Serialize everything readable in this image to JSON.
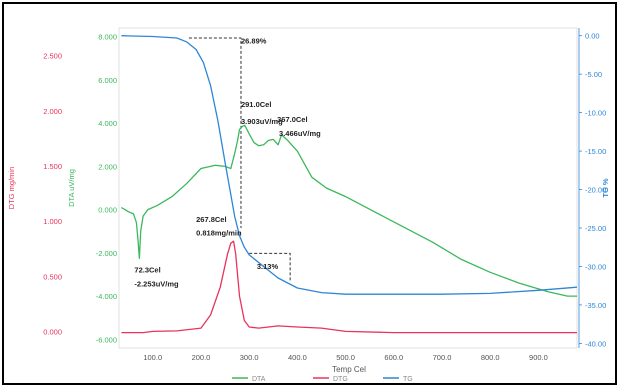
{
  "chart_data": {
    "type": "line",
    "xlabel": "Temp Cel",
    "x_ticks": [
      "100.0",
      "200.0",
      "300.0",
      "400.0",
      "500.0",
      "600.0",
      "700.0",
      "800.0",
      "900.0"
    ],
    "xlim": [
      30,
      980
    ],
    "axes": {
      "dtg": {
        "label": "DTG mg/min",
        "color": "#e8345a",
        "ticks": [
          "2.500",
          "2.000",
          "1.500",
          "1.000",
          "0.500",
          "0.000"
        ],
        "ylim": [
          -0.15,
          2.75
        ]
      },
      "dta": {
        "label": "DTA uV/mg",
        "color": "#3cb85c",
        "ticks": [
          "8.000",
          "6.000",
          "4.000",
          "2.000",
          "0.000",
          "-2.000",
          "-4.000",
          "-6.000"
        ],
        "ylim": [
          -6.4,
          8.4
        ]
      },
      "tg": {
        "label": "TG %",
        "color": "#2f86d6",
        "ticks": [
          "0.00",
          "-5.00",
          "-10.00",
          "-15.00",
          "-20.00",
          "-25.00",
          "-30.00",
          "-35.00",
          "-40.00"
        ],
        "ylim": [
          -40.6,
          1.0
        ]
      }
    },
    "series": [
      {
        "axis": "dta",
        "color": "#3cb85c",
        "x": [
          35,
          50,
          60,
          66,
          69,
          72.3,
          75,
          80,
          90,
          110,
          140,
          170,
          200,
          230,
          250,
          262,
          270,
          276,
          280,
          286,
          291,
          300,
          310,
          320,
          330,
          340,
          350,
          360,
          367,
          380,
          400,
          430,
          460,
          500,
          560,
          620,
          680,
          740,
          800,
          860,
          920,
          960,
          980
        ],
        "y": [
          0.1,
          -0.1,
          -0.2,
          -0.6,
          -1.3,
          -2.25,
          -1.0,
          -0.3,
          0.0,
          0.2,
          0.6,
          1.2,
          1.9,
          2.05,
          2.0,
          1.9,
          2.6,
          3.2,
          3.7,
          3.85,
          3.9,
          3.5,
          3.1,
          2.95,
          3.0,
          3.2,
          3.25,
          3.0,
          3.46,
          3.2,
          2.7,
          1.5,
          1.0,
          0.6,
          -0.1,
          -0.8,
          -1.5,
          -2.3,
          -2.9,
          -3.4,
          -3.8,
          -4.0,
          -4.0
        ]
      },
      {
        "axis": "dtg",
        "color": "#e8345a",
        "x": [
          35,
          80,
          100,
          150,
          200,
          220,
          240,
          255,
          262,
          267.8,
          272,
          280,
          290,
          300,
          320,
          360,
          400,
          450,
          500,
          600,
          700,
          800,
          900,
          980
        ],
        "y": [
          -0.01,
          -0.01,
          0.0,
          0.005,
          0.03,
          0.15,
          0.4,
          0.7,
          0.8,
          0.818,
          0.7,
          0.32,
          0.1,
          0.04,
          0.03,
          0.05,
          0.04,
          0.03,
          0.0,
          -0.01,
          -0.01,
          -0.01,
          -0.01,
          -0.01
        ]
      },
      {
        "axis": "tg",
        "color": "#2f86d6",
        "x": [
          35,
          100,
          150,
          170,
          190,
          205,
          220,
          235,
          250,
          260,
          270,
          280,
          290,
          300,
          330,
          360,
          400,
          450,
          500,
          600,
          700,
          800,
          900,
          980
        ],
        "y": [
          0.0,
          -0.1,
          -0.3,
          -0.8,
          -1.8,
          -3.5,
          -6.5,
          -11.0,
          -16.5,
          -20.0,
          -23.5,
          -26.0,
          -27.5,
          -28.5,
          -30.0,
          -31.5,
          -32.8,
          -33.4,
          -33.6,
          -33.6,
          -33.6,
          -33.5,
          -33.1,
          -32.7
        ]
      }
    ],
    "annotations": [
      {
        "text": "26.89%",
        "axis": "tg",
        "x": 283,
        "y": -1.0
      },
      {
        "text": "3.13%",
        "axis": "tg",
        "x": 316,
        "y": -30.3
      },
      {
        "text": "291.0Cel",
        "axis": "dta",
        "x": 283,
        "y": 4.75
      },
      {
        "text": "3.903uV/mg",
        "axis": "dta",
        "x": 283,
        "y": 3.95
      },
      {
        "text": "367.0Cel",
        "axis": "dta",
        "x": 358,
        "y": 4.05
      },
      {
        "text": "3.466uV/mg",
        "axis": "dta",
        "x": 362,
        "y": 3.4
      },
      {
        "text": "267.8Cel",
        "axis": "dtg",
        "x": 190,
        "y": 0.99
      },
      {
        "text": "0.818mg/min",
        "axis": "dtg",
        "x": 190,
        "y": 0.87
      },
      {
        "text": "72.3Cel",
        "axis": "dta",
        "x": 62,
        "y": -2.9
      },
      {
        "text": "-2.253uV/mg",
        "axis": "dta",
        "x": 62,
        "y": -3.55
      }
    ],
    "step_markers": [
      {
        "axis": "tg",
        "from_x": 175,
        "to_x": 283,
        "top_y": -0.3,
        "bottom_y": -25.0
      },
      {
        "axis": "tg",
        "from_x": 300,
        "to_x": 385,
        "top_y": -28.3,
        "bottom_y": -32.0
      }
    ],
    "legend": [
      "DTA",
      "DTG",
      "TG"
    ],
    "legend_position": "bottom",
    "grid": false
  }
}
